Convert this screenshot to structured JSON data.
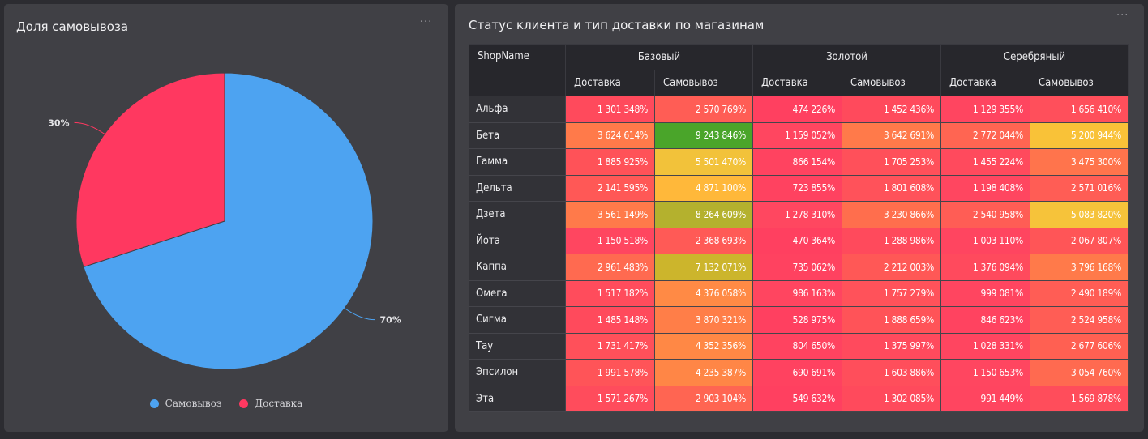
{
  "pie_panel": {
    "title": "Доля самовывоза",
    "more_label": "···",
    "chart_data": {
      "type": "pie",
      "slices": [
        {
          "name": "Самовывоз",
          "value": 70,
          "label": "70%",
          "color": "#4da3f1"
        },
        {
          "name": "Доставка",
          "value": 30,
          "label": "30%",
          "color": "#ff3860"
        }
      ],
      "legend_position": "bottom"
    }
  },
  "table_panel": {
    "title": "Статус клиента и тип доставки по магазинам",
    "more_label": "···",
    "chart_data": {
      "type": "table",
      "row_header": "ShopName",
      "groups": [
        "Базовый",
        "Золотой",
        "Серебряный"
      ],
      "subcolumns": [
        "Доставка",
        "Самовывоз",
        "Доставка",
        "Самовывоз",
        "Доставка",
        "Самовывоз"
      ],
      "rows": [
        {
          "name": "Альфа",
          "values": [
            "1 301 348%",
            "2 570 769%",
            "474 226%",
            "1 452 436%",
            "1 129 355%",
            "1 656 410%"
          ],
          "colors": [
            "#ff4a5c",
            "#ff5d55",
            "#ff4060",
            "#ff4a5c",
            "#ff4560",
            "#ff4f5b"
          ]
        },
        {
          "name": "Бета",
          "values": [
            "3 624 614%",
            "9 243 846%",
            "1 159 052%",
            "3 642 691%",
            "2 772 044%",
            "5 200 944%"
          ],
          "colors": [
            "#ff7a4a",
            "#4aa52a",
            "#ff4660",
            "#ff7a4a",
            "#ff6552",
            "#f9c238"
          ]
        },
        {
          "name": "Гамма",
          "values": [
            "1 885 925%",
            "5 501 470%",
            "866 154%",
            "1 705 253%",
            "1 455 224%",
            "3 475 300%"
          ],
          "colors": [
            "#ff5258",
            "#f2c23a",
            "#ff4360",
            "#ff505a",
            "#ff4a5d",
            "#ff744c"
          ]
        },
        {
          "name": "Дельта",
          "values": [
            "2 141 595%",
            "4 871 100%",
            "723 855%",
            "1 801 608%",
            "1 198 408%",
            "2 571 016%"
          ],
          "colors": [
            "#ff5856",
            "#ffb83a",
            "#ff4260",
            "#ff525a",
            "#ff4660",
            "#ff5d55"
          ]
        },
        {
          "name": "Дзета",
          "values": [
            "3 561 149%",
            "8 264 609%",
            "1 278 310%",
            "3 230 866%",
            "2 540 958%",
            "5 083 820%"
          ],
          "colors": [
            "#ff7a4a",
            "#b4b12e",
            "#ff4760",
            "#ff6e4d",
            "#ff5d55",
            "#f6c33a"
          ]
        },
        {
          "name": "Йота",
          "values": [
            "1 150 518%",
            "2 368 693%",
            "470 364%",
            "1 288 986%",
            "1 003 110%",
            "2 067 807%"
          ],
          "colors": [
            "#ff4660",
            "#ff5a56",
            "#ff4060",
            "#ff4a5c",
            "#ff4560",
            "#ff5557"
          ]
        },
        {
          "name": "Каппа",
          "values": [
            "2 961 483%",
            "7 132 071%",
            "735 062%",
            "2 212 003%",
            "1 376 094%",
            "3 796 168%"
          ],
          "colors": [
            "#ff6a50",
            "#ccb52c",
            "#ff4260",
            "#ff5856",
            "#ff4a5d",
            "#ff7a4a"
          ]
        },
        {
          "name": "Омега",
          "values": [
            "1 517 182%",
            "4 376 058%",
            "986 163%",
            "1 757 279%",
            "999 081%",
            "2 490 189%"
          ],
          "colors": [
            "#ff4c5c",
            "#ff8a45",
            "#ff4560",
            "#ff525a",
            "#ff4560",
            "#ff5d55"
          ]
        },
        {
          "name": "Сигма",
          "values": [
            "1 485 148%",
            "3 870 321%",
            "528 975%",
            "1 888 659%",
            "846 623%",
            "2 524 958%"
          ],
          "colors": [
            "#ff4a5c",
            "#ff7e48",
            "#ff4060",
            "#ff5358",
            "#ff4360",
            "#ff5d55"
          ]
        },
        {
          "name": "Тау",
          "values": [
            "1 731 417%",
            "4 352 356%",
            "804 650%",
            "1 375 997%",
            "1 028 331%",
            "2 677 606%"
          ],
          "colors": [
            "#ff505a",
            "#ff8845",
            "#ff4360",
            "#ff4a5d",
            "#ff4560",
            "#ff6052"
          ]
        },
        {
          "name": "Эпсилон",
          "values": [
            "1 991 578%",
            "4 235 387%",
            "690 691%",
            "1 603 886%",
            "1 150 653%",
            "3 054 760%"
          ],
          "colors": [
            "#ff5458",
            "#ff8646",
            "#ff4260",
            "#ff4e5b",
            "#ff4660",
            "#ff6a50"
          ]
        },
        {
          "name": "Эта",
          "values": [
            "1 571 267%",
            "2 903 104%",
            "549 632%",
            "1 302 085%",
            "991 449%",
            "1 569 878%"
          ],
          "colors": [
            "#ff4c5c",
            "#ff6552",
            "#ff4060",
            "#ff4a5c",
            "#ff4560",
            "#ff4d5b"
          ]
        }
      ]
    }
  }
}
